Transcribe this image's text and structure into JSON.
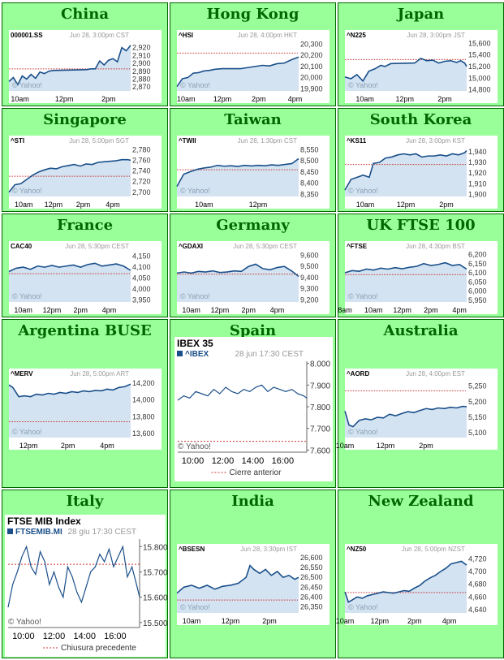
{
  "colors": {
    "cell_bg": "#99ff99",
    "title": "#006600",
    "line": "#1a4f8a",
    "fill": "#d3e3f1",
    "prev_close": "#cc3333",
    "header_gray": "#999999"
  },
  "watermark": "© Yahoo!",
  "chart_data": [
    {
      "region": "China",
      "type": "area",
      "symbol": "000001.SS",
      "timestamp": "Jun 28, 3:00pm CST",
      "ylim": [
        2865,
        2930
      ],
      "yticks": [
        "2,920",
        "2,910",
        "2,900",
        "2,890",
        "2,880",
        "2,870"
      ],
      "ytick_values": [
        2920,
        2910,
        2900,
        2890,
        2880,
        2870
      ],
      "xlim": [
        9.5,
        15
      ],
      "xticks": [
        "10am",
        "12pm",
        "2pm"
      ],
      "xtick_values": [
        10,
        12,
        14
      ],
      "prev_close": 2893,
      "x": [
        9.5,
        9.7,
        9.9,
        10.1,
        10.3,
        10.5,
        10.7,
        10.9,
        11.1,
        11.3,
        11.5,
        13.0,
        13.2,
        13.4,
        13.6,
        13.8,
        14.0,
        14.2,
        14.4,
        14.6,
        14.8,
        15.0
      ],
      "y": [
        2877,
        2882,
        2873,
        2884,
        2880,
        2886,
        2881,
        2889,
        2887,
        2890,
        2891,
        2892,
        2893,
        2893,
        2903,
        2898,
        2904,
        2906,
        2902,
        2920,
        2916,
        2923
      ]
    },
    {
      "region": "Hong Kong",
      "type": "area",
      "symbol": "^HSI",
      "timestamp": "Jun 28, 4:00pm HKT",
      "ylim": [
        19880,
        20340
      ],
      "yticks": [
        "20,300",
        "20,200",
        "20,100",
        "20,000",
        "19,900"
      ],
      "ytick_values": [
        20300,
        20200,
        20100,
        20000,
        19900
      ],
      "xlim": [
        9.5,
        16.2
      ],
      "xticks": [
        "10am",
        "12pm",
        "2pm",
        "4pm"
      ],
      "xtick_values": [
        10,
        12,
        14,
        16
      ],
      "prev_close": 20220,
      "x": [
        9.5,
        9.8,
        10.1,
        10.4,
        10.7,
        11.0,
        11.3,
        11.6,
        12.0,
        13.0,
        13.4,
        13.8,
        14.2,
        14.6,
        15.0,
        15.4,
        15.8,
        16.2
      ],
      "y": [
        19920,
        19990,
        20000,
        20040,
        20045,
        20060,
        20065,
        20075,
        20080,
        20080,
        20090,
        20100,
        20110,
        20105,
        20125,
        20130,
        20160,
        20185
      ]
    },
    {
      "region": "Japan",
      "type": "area",
      "symbol": "^N225",
      "timestamp": "Jun 28, 3:00pm JST",
      "ylim": [
        14780,
        15660
      ],
      "yticks": [
        "15,600",
        "15,400",
        "15,200",
        "15,000",
        "14,800"
      ],
      "ytick_values": [
        15600,
        15400,
        15200,
        15000,
        14800
      ],
      "xlim": [
        9.0,
        15.1
      ],
      "xticks": [
        "10am",
        "12pm",
        "2pm"
      ],
      "xtick_values": [
        10,
        12,
        14
      ],
      "prev_close": 15320,
      "x": [
        9.0,
        9.3,
        9.6,
        9.9,
        10.2,
        10.5,
        10.8,
        11.0,
        11.3,
        12.5,
        12.8,
        13.1,
        13.4,
        13.7,
        14.0,
        14.3,
        14.6,
        14.8,
        15.0,
        15.1
      ],
      "y": [
        15020,
        14990,
        15060,
        14950,
        15120,
        15160,
        15220,
        15200,
        15250,
        15260,
        15340,
        15300,
        15310,
        15260,
        15290,
        15300,
        15270,
        15300,
        15260,
        15200
      ]
    },
    {
      "region": "Singapore",
      "type": "area",
      "symbol": "^STI",
      "timestamp": "Jun 28, 5:00pm SGT",
      "ylim": [
        2692,
        2788
      ],
      "yticks": [
        "2,780",
        "2,760",
        "2,740",
        "2,720",
        "2,700"
      ],
      "ytick_values": [
        2780,
        2760,
        2740,
        2720,
        2700
      ],
      "xlim": [
        9.0,
        17.2
      ],
      "xticks": [
        "10am",
        "12pm",
        "2pm",
        "4pm"
      ],
      "xtick_values": [
        10,
        12,
        14,
        16
      ],
      "prev_close": 2730,
      "x": [
        9.0,
        9.4,
        9.8,
        10.2,
        10.6,
        11.0,
        11.4,
        11.8,
        12.2,
        12.6,
        13.0,
        13.4,
        13.8,
        14.2,
        14.6,
        15.0,
        15.4,
        15.8,
        16.2,
        16.6,
        17.0,
        17.2
      ],
      "y": [
        2700,
        2714,
        2716,
        2724,
        2732,
        2738,
        2742,
        2745,
        2744,
        2748,
        2750,
        2752,
        2749,
        2753,
        2752,
        2756,
        2757,
        2758,
        2759,
        2761,
        2761,
        2760
      ]
    },
    {
      "region": "Taiwan",
      "type": "area",
      "symbol": "^TWII",
      "timestamp": "Jun 28, 1:30pm CST",
      "ylim": [
        8340,
        8570
      ],
      "yticks": [
        "8,550",
        "8,500",
        "8,450",
        "8,400",
        "8,350"
      ],
      "ytick_values": [
        8550,
        8500,
        8450,
        8400,
        8350
      ],
      "xlim": [
        9.0,
        13.5
      ],
      "xticks": [
        "10am",
        "12pm"
      ],
      "xtick_values": [
        10,
        12
      ],
      "prev_close": 8460,
      "x": [
        9.0,
        9.25,
        9.5,
        9.75,
        10.0,
        10.25,
        10.5,
        10.75,
        11.0,
        11.25,
        11.5,
        11.75,
        12.0,
        12.25,
        12.5,
        12.75,
        13.0,
        13.25,
        13.5
      ],
      "y": [
        8385,
        8440,
        8452,
        8462,
        8468,
        8472,
        8480,
        8476,
        8478,
        8475,
        8480,
        8477,
        8480,
        8478,
        8482,
        8480,
        8484,
        8488,
        8510
      ]
    },
    {
      "region": "South Korea",
      "type": "area",
      "symbol": "^KS11",
      "timestamp": "Jun 28, 3:00pm KST",
      "ylim": [
        1898,
        1946
      ],
      "yticks": [
        "1,940",
        "1,930",
        "1,920",
        "1,910",
        "1,900"
      ],
      "ytick_values": [
        1940,
        1930,
        1920,
        1910,
        1900
      ],
      "xlim": [
        9.0,
        15.0
      ],
      "xticks": [
        "10am",
        "12pm",
        "2pm"
      ],
      "xtick_values": [
        10,
        12,
        14
      ],
      "prev_close": 1928,
      "x": [
        9.0,
        9.3,
        9.6,
        9.9,
        10.2,
        10.4,
        10.7,
        11.0,
        11.3,
        11.6,
        11.9,
        12.2,
        12.5,
        12.8,
        13.1,
        13.4,
        13.7,
        14.0,
        14.3,
        14.6,
        14.9,
        15.0
      ],
      "y": [
        1904,
        1914,
        1916,
        1918,
        1916,
        1929,
        1930,
        1934,
        1935,
        1937,
        1938,
        1937,
        1938,
        1935,
        1936,
        1936,
        1937,
        1936,
        1938,
        1937,
        1939,
        1941
      ]
    },
    {
      "region": "France",
      "type": "area",
      "symbol": "CAC40",
      "timestamp": "Jun 28, 5:30pm CEST",
      "ylim": [
        3940,
        4175
      ],
      "yticks": [
        "4,150",
        "4,100",
        "4,050",
        "4,000",
        "3,950"
      ],
      "ytick_values": [
        4150,
        4100,
        4050,
        4000,
        3950
      ],
      "xlim": [
        9.0,
        17.5
      ],
      "xticks": [
        "10am",
        "12pm",
        "2pm",
        "4pm"
      ],
      "xtick_values": [
        10,
        12,
        14,
        16
      ],
      "prev_close": 4070,
      "x": [
        9.0,
        9.5,
        10.0,
        10.5,
        11.0,
        11.5,
        12.0,
        12.5,
        13.0,
        13.5,
        14.0,
        14.5,
        15.0,
        15.5,
        16.0,
        16.5,
        17.0,
        17.5
      ],
      "y": [
        4080,
        4095,
        4100,
        4090,
        4105,
        4100,
        4108,
        4100,
        4105,
        4110,
        4100,
        4112,
        4118,
        4105,
        4110,
        4115,
        4105,
        4085
      ]
    },
    {
      "region": "Germany",
      "type": "area",
      "symbol": "^GDAXI",
      "timestamp": "Jun 28, 5:30pm CEST",
      "ylim": [
        9180,
        9640
      ],
      "yticks": [
        "9,600",
        "9,500",
        "9,400",
        "9,300",
        "9,200"
      ],
      "ytick_values": [
        9600,
        9500,
        9400,
        9300,
        9200
      ],
      "xlim": [
        9.0,
        17.5
      ],
      "xticks": [
        "10am",
        "12pm",
        "2pm",
        "4pm"
      ],
      "xtick_values": [
        10,
        12,
        14,
        16
      ],
      "prev_close": 9430,
      "x": [
        9.0,
        9.5,
        10.0,
        10.5,
        11.0,
        11.5,
        12.0,
        12.5,
        13.0,
        13.5,
        14.0,
        14.5,
        15.0,
        15.5,
        16.0,
        16.5,
        17.0,
        17.5
      ],
      "y": [
        9440,
        9450,
        9440,
        9455,
        9450,
        9460,
        9445,
        9450,
        9460,
        9455,
        9500,
        9520,
        9480,
        9470,
        9490,
        9500,
        9460,
        9410
      ]
    },
    {
      "region": "UK FTSE 100",
      "type": "area",
      "symbol": "^FTSE",
      "timestamp": "Jun 28, 4:30pm BST",
      "ylim": [
        5940,
        6220
      ],
      "yticks": [
        "6,200",
        "6,150",
        "6,100",
        "6,050",
        "6,000",
        "5,950"
      ],
      "ytick_values": [
        6200,
        6150,
        6100,
        6050,
        6000,
        5950
      ],
      "xlim": [
        8.0,
        16.5
      ],
      "xticks": [
        "8am",
        "10am",
        "12pm",
        "2pm",
        "4pm"
      ],
      "xtick_values": [
        8,
        10,
        12,
        14,
        16
      ],
      "prev_close": 6090,
      "x": [
        8.0,
        8.5,
        9.0,
        9.5,
        10.0,
        10.5,
        11.0,
        11.5,
        12.0,
        12.5,
        13.0,
        13.5,
        14.0,
        14.5,
        15.0,
        15.5,
        16.0,
        16.5
      ],
      "y": [
        6100,
        6112,
        6108,
        6120,
        6115,
        6125,
        6120,
        6128,
        6122,
        6130,
        6135,
        6150,
        6140,
        6145,
        6155,
        6140,
        6145,
        6120
      ]
    },
    {
      "region": "Argentina BUSE",
      "type": "area",
      "symbol": "^MERV",
      "timestamp": "Jun 28, 5:00pm ART",
      "ylim": [
        13550,
        14260
      ],
      "yticks": [
        "14,200",
        "14,000",
        "13,800",
        "13,600"
      ],
      "ytick_values": [
        14200,
        14000,
        13800,
        13600
      ],
      "xlim": [
        11.0,
        17.2
      ],
      "xticks": [
        "12pm",
        "2pm",
        "4pm"
      ],
      "xtick_values": [
        12,
        14,
        16
      ],
      "prev_close": 13740,
      "x": [
        11.0,
        11.2,
        11.5,
        11.8,
        12.1,
        12.4,
        12.7,
        13.0,
        13.3,
        13.6,
        13.9,
        14.2,
        14.5,
        14.8,
        15.1,
        15.4,
        15.7,
        16.0,
        16.3,
        16.6,
        16.9,
        17.2
      ],
      "y": [
        14180,
        14150,
        14040,
        14050,
        14040,
        14070,
        14060,
        14080,
        14070,
        14090,
        14080,
        14100,
        14090,
        14110,
        14100,
        14115,
        14110,
        14130,
        14120,
        14150,
        14160,
        14190
      ]
    },
    {
      "region": "Spain",
      "type": "line",
      "title": "IBEX 35",
      "symbol": "^IBEX",
      "timestamp": "28 jun 17:30 CEST",
      "ylim": [
        7590,
        8010
      ],
      "yticks": [
        "8.000",
        "7.900",
        "7.800",
        "7.700",
        "7.600"
      ],
      "ytick_values": [
        8000,
        7900,
        7800,
        7700,
        7600
      ],
      "xlim": [
        9.0,
        17.6
      ],
      "xticks": [
        "10:00",
        "12:00",
        "14:00",
        "16:00"
      ],
      "xtick_values": [
        10,
        12,
        14,
        16
      ],
      "prev_close": 7640,
      "legend": "Cierre anterior",
      "x": [
        9.0,
        9.4,
        9.8,
        10.2,
        10.6,
        11.0,
        11.4,
        11.8,
        12.2,
        12.6,
        13.0,
        13.4,
        13.8,
        14.2,
        14.6,
        15.0,
        15.4,
        15.8,
        16.2,
        16.6,
        17.0,
        17.4,
        17.6
      ],
      "y": [
        7830,
        7850,
        7840,
        7870,
        7860,
        7850,
        7880,
        7860,
        7890,
        7870,
        7860,
        7880,
        7870,
        7890,
        7900,
        7870,
        7890,
        7880,
        7870,
        7880,
        7860,
        7850,
        7840
      ]
    },
    {
      "region": "Australia",
      "type": "area",
      "symbol": "^AORD",
      "timestamp": "Jun 28, 4:00pm EST",
      "ylim": [
        5085,
        5275
      ],
      "yticks": [
        "5,250",
        "5,200",
        "5,150",
        "5,100"
      ],
      "ytick_values": [
        5250,
        5200,
        5150,
        5100
      ],
      "xlim": [
        10.0,
        16.0
      ],
      "xticks": [
        "10am",
        "12pm",
        "2pm"
      ],
      "xtick_values": [
        10,
        12,
        14
      ],
      "prev_close": 5235,
      "x": [
        10.0,
        10.2,
        10.4,
        10.7,
        11.0,
        11.3,
        11.6,
        11.9,
        12.2,
        12.5,
        12.8,
        13.1,
        13.4,
        13.7,
        14.0,
        14.3,
        14.6,
        14.9,
        15.2,
        15.5,
        15.8,
        16.0
      ],
      "y": [
        5170,
        5125,
        5120,
        5140,
        5145,
        5142,
        5150,
        5148,
        5160,
        5155,
        5162,
        5168,
        5165,
        5172,
        5178,
        5175,
        5180,
        5178,
        5182,
        5180,
        5185,
        5184
      ]
    },
    {
      "region": "Italy",
      "type": "line",
      "title": "FTSE MIB Index",
      "symbol": "FTSEMIB.MI",
      "timestamp": "28 giu 17:30 CEST",
      "ylim": [
        15480,
        15830
      ],
      "yticks": [
        "15.800",
        "15.700",
        "15.600",
        "15.500"
      ],
      "ytick_values": [
        15800,
        15700,
        15600,
        15500
      ],
      "xlim": [
        9.0,
        17.6
      ],
      "xticks": [
        "10:00",
        "12:00",
        "14:00",
        "16:00"
      ],
      "xtick_values": [
        10,
        12,
        14,
        16
      ],
      "prev_close": 15730,
      "legend": "Chiusura precedente",
      "x": [
        9.0,
        9.3,
        9.6,
        9.9,
        10.2,
        10.5,
        10.8,
        11.1,
        11.4,
        11.7,
        12.0,
        12.3,
        12.6,
        12.9,
        13.2,
        13.5,
        13.8,
        14.1,
        14.4,
        14.7,
        15.0,
        15.3,
        15.6,
        15.9,
        16.2,
        16.5,
        16.8,
        17.1,
        17.4,
        17.6
      ],
      "y": [
        15560,
        15650,
        15700,
        15760,
        15800,
        15720,
        15690,
        15780,
        15740,
        15650,
        15700,
        15640,
        15600,
        15720,
        15680,
        15620,
        15580,
        15640,
        15700,
        15720,
        15770,
        15740,
        15790,
        15720,
        15760,
        15800,
        15680,
        15720,
        15650,
        15600
      ]
    },
    {
      "region": "India",
      "type": "area",
      "symbol": "^BSESN",
      "timestamp": "Jun 28, 3:30pm IST",
      "ylim": [
        26320,
        26620
      ],
      "yticks": [
        "26,600",
        "26,550",
        "26,500",
        "26,450",
        "26,400",
        "26,350"
      ],
      "ytick_values": [
        26600,
        26550,
        26500,
        26450,
        26400,
        26350
      ],
      "xlim": [
        9.25,
        15.5
      ],
      "xticks": [
        "10am",
        "12pm",
        "2pm"
      ],
      "xtick_values": [
        10,
        12,
        14
      ],
      "prev_close": 26385,
      "x": [
        9.25,
        9.6,
        10.0,
        10.4,
        10.8,
        11.2,
        11.6,
        12.0,
        12.4,
        12.8,
        13.0,
        13.2,
        13.5,
        13.8,
        14.1,
        14.4,
        14.7,
        15.0,
        15.3,
        15.5
      ],
      "y": [
        26420,
        26450,
        26460,
        26445,
        26460,
        26440,
        26455,
        26460,
        26470,
        26500,
        26560,
        26540,
        26520,
        26540,
        26510,
        26530,
        26500,
        26510,
        26490,
        26500
      ]
    },
    {
      "region": "New Zealand",
      "type": "area",
      "symbol": "^NZ50",
      "timestamp": "Jun 28, 5:00pm NZST",
      "ylim": [
        4635,
        4728
      ],
      "yticks": [
        "4,720",
        "4,700",
        "4,680",
        "4,660",
        "4,640"
      ],
      "ytick_values": [
        4720,
        4700,
        4680,
        4660,
        4640
      ],
      "xlim": [
        10.0,
        17.0
      ],
      "xticks": [
        "10am",
        "12pm",
        "2pm",
        "4pm"
      ],
      "xtick_values": [
        10,
        12,
        14,
        16
      ],
      "prev_close": 4667,
      "x": [
        10.0,
        10.2,
        10.4,
        10.7,
        11.0,
        11.3,
        11.6,
        11.9,
        12.2,
        12.5,
        12.8,
        13.1,
        13.4,
        13.7,
        14.0,
        14.3,
        14.6,
        14.9,
        15.2,
        15.5,
        15.8,
        16.1,
        16.4,
        16.7,
        17.0
      ],
      "y": [
        4668,
        4652,
        4655,
        4660,
        4658,
        4662,
        4664,
        4666,
        4668,
        4667,
        4666,
        4668,
        4670,
        4669,
        4674,
        4678,
        4685,
        4690,
        4694,
        4700,
        4705,
        4712,
        4714,
        4716,
        4710
      ]
    }
  ]
}
